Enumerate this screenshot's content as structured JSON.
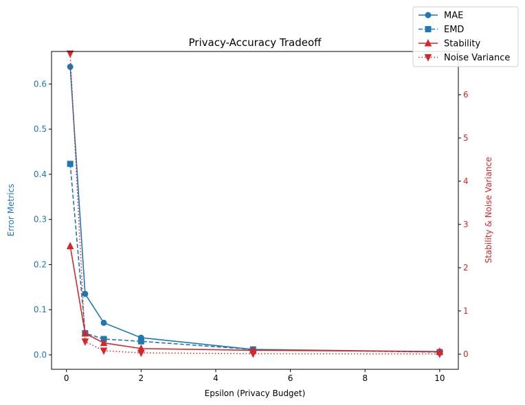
{
  "chart_data": {
    "type": "line",
    "title": "Privacy-Accuracy Tradeoff",
    "xlabel": "Epsilon (Privacy Budget)",
    "ylabel_left": "Error Metrics",
    "ylabel_right": "Stability & Noise Variance",
    "x": [
      0.1,
      0.5,
      1,
      2,
      5,
      10
    ],
    "xlim": [
      -0.4,
      10.5
    ],
    "ylim_left": [
      -0.032,
      0.672
    ],
    "ylim_right": [
      -0.35,
      7.0
    ],
    "x_ticks": [
      "0",
      "2",
      "4",
      "6",
      "8",
      "10"
    ],
    "y_ticks_left": [
      "0.0",
      "0.1",
      "0.2",
      "0.3",
      "0.4",
      "0.5",
      "0.6"
    ],
    "y_ticks_right": [
      "0",
      "1",
      "2",
      "3",
      "4",
      "5",
      "6"
    ],
    "left_color": "#1f77b4",
    "right_color": "#d62728",
    "legend_position": "top-right",
    "series": [
      {
        "name": "MAE",
        "axis": "left",
        "color": "#1f77b4",
        "marker": "circle",
        "dash": "solid",
        "values": [
          0.638,
          0.135,
          0.071,
          0.038,
          0.012,
          0.007
        ]
      },
      {
        "name": "EMD",
        "axis": "left",
        "color": "#1f77b4",
        "marker": "square",
        "dash": "dashed",
        "values": [
          0.423,
          0.048,
          0.035,
          0.03,
          0.012,
          0.006
        ]
      },
      {
        "name": "Stability",
        "axis": "right",
        "color": "#d62728",
        "marker": "triangle-up",
        "dash": "solid",
        "values": [
          2.5,
          0.48,
          0.26,
          0.13,
          0.09,
          0.06
        ]
      },
      {
        "name": "Noise Variance",
        "axis": "right",
        "color": "#d62728",
        "marker": "triangle-down",
        "dash": "dotted",
        "values": [
          6.95,
          0.29,
          0.08,
          0.03,
          0.01,
          0.005
        ]
      }
    ]
  }
}
